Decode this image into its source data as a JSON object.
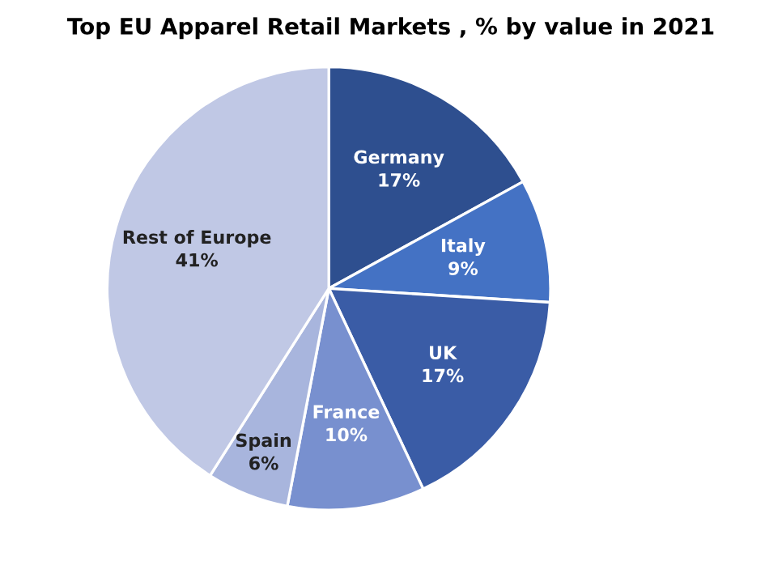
{
  "chart_data": {
    "type": "pie",
    "title": "Top EU Apparel Retail Markets , % by value in 2021",
    "categories": [
      "Germany",
      "Italy",
      "UK",
      "France",
      "Spain",
      "Rest of Europe"
    ],
    "values": [
      17,
      9,
      17,
      10,
      6,
      41
    ],
    "value_labels": [
      "17%",
      "9%",
      "17%",
      "10%",
      "6%",
      "41%"
    ],
    "colors": [
      "#2e4f8f",
      "#4472c4",
      "#3a5ca6",
      "#7890cf",
      "#a8b5dd",
      "#c0c8e5"
    ],
    "legend": false
  }
}
